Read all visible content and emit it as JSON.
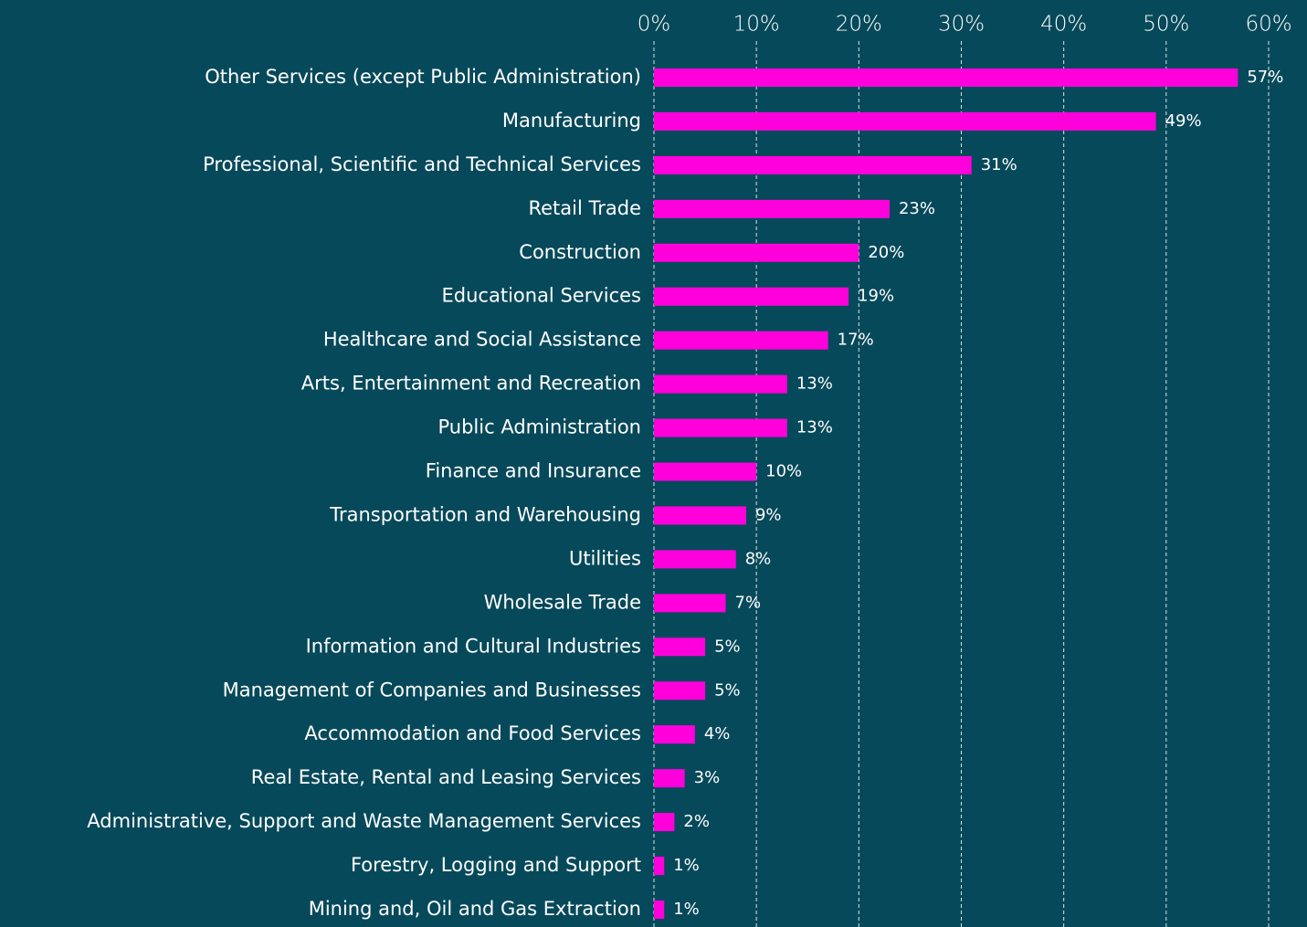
{
  "chart_data": {
    "type": "bar",
    "orientation": "horizontal",
    "color": "#ff00dd",
    "grid": true,
    "categories": [
      "Other Services (except Public Administration)",
      "Manufacturing",
      "Professional, Scientific and Technical Services",
      "Retail Trade",
      "Construction",
      "Educational Services",
      "Healthcare and Social Assistance",
      "Arts, Entertainment and Recreation",
      "Public Administration",
      "Finance and Insurance",
      "Transportation and Warehousing",
      "Utilities",
      "Wholesale Trade",
      "Information and Cultural Industries",
      "Management of Companies and Businesses",
      "Accommodation and Food Services",
      "Real Estate, Rental and Leasing Services",
      "Administrative, Support and Waste Management Services",
      "Forestry, Logging and Support",
      "Mining and, Oil and Gas Extraction"
    ],
    "values": [
      57,
      49,
      31,
      23,
      20,
      19,
      17,
      13,
      13,
      10,
      9,
      8,
      7,
      5,
      5,
      4,
      3,
      2,
      1,
      1
    ],
    "value_labels": [
      "57%",
      "49%",
      "31%",
      "23%",
      "20%",
      "19%",
      "17%",
      "13%",
      "13%",
      "10%",
      "9%",
      "8%",
      "7%",
      "5%",
      "5%",
      "4%",
      "3%",
      "2%",
      "1%",
      "1%"
    ],
    "xlim": [
      0,
      60
    ],
    "xticks": [
      {
        "value": 0,
        "label": "0%"
      },
      {
        "value": 10,
        "label": "10%"
      },
      {
        "value": 20,
        "label": "20%"
      },
      {
        "value": 30,
        "label": "30%"
      },
      {
        "value": 40,
        "label": "40%"
      },
      {
        "value": 50,
        "label": "50%"
      },
      {
        "value": 60,
        "label": "60%"
      }
    ]
  }
}
